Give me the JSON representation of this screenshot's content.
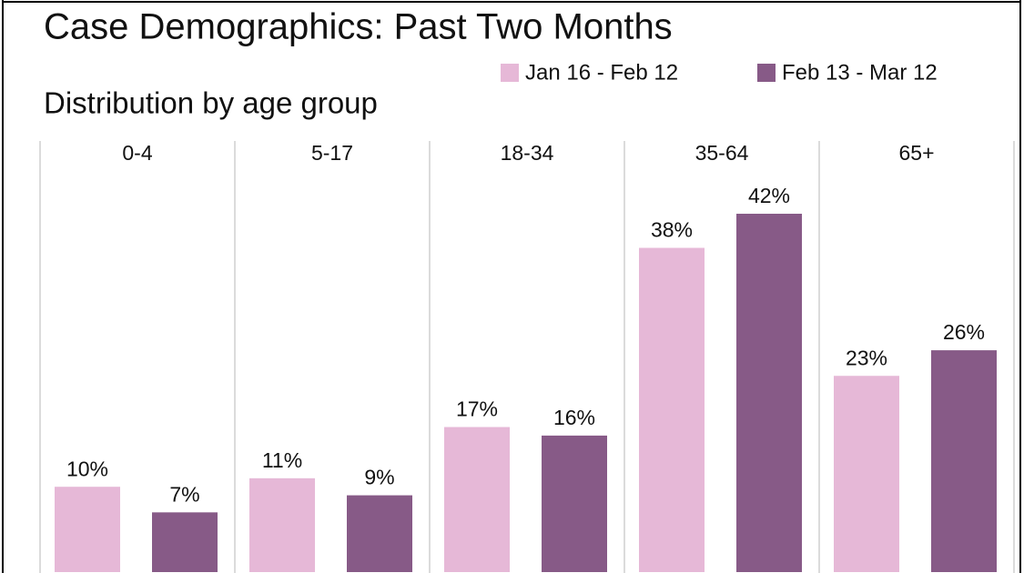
{
  "chart_data": {
    "type": "bar",
    "title": "Case Demographics: Past Two Months",
    "subtitle": "Distribution by age group",
    "categories": [
      "0-4",
      "5-17",
      "18-34",
      "35-64",
      "65+"
    ],
    "series": [
      {
        "name": "Jan 16 - Feb 12",
        "color": "#e6b8d7",
        "values": [
          10,
          11,
          17,
          38,
          23
        ],
        "value_labels": [
          "10%",
          "11%",
          "17%",
          "38%",
          "23%"
        ]
      },
      {
        "name": "Feb 13 - Mar 12",
        "color": "#875a87",
        "values": [
          7,
          9,
          16,
          42,
          26
        ],
        "value_labels": [
          "7%",
          "9%",
          "16%",
          "42%",
          "26%"
        ]
      }
    ]
  }
}
